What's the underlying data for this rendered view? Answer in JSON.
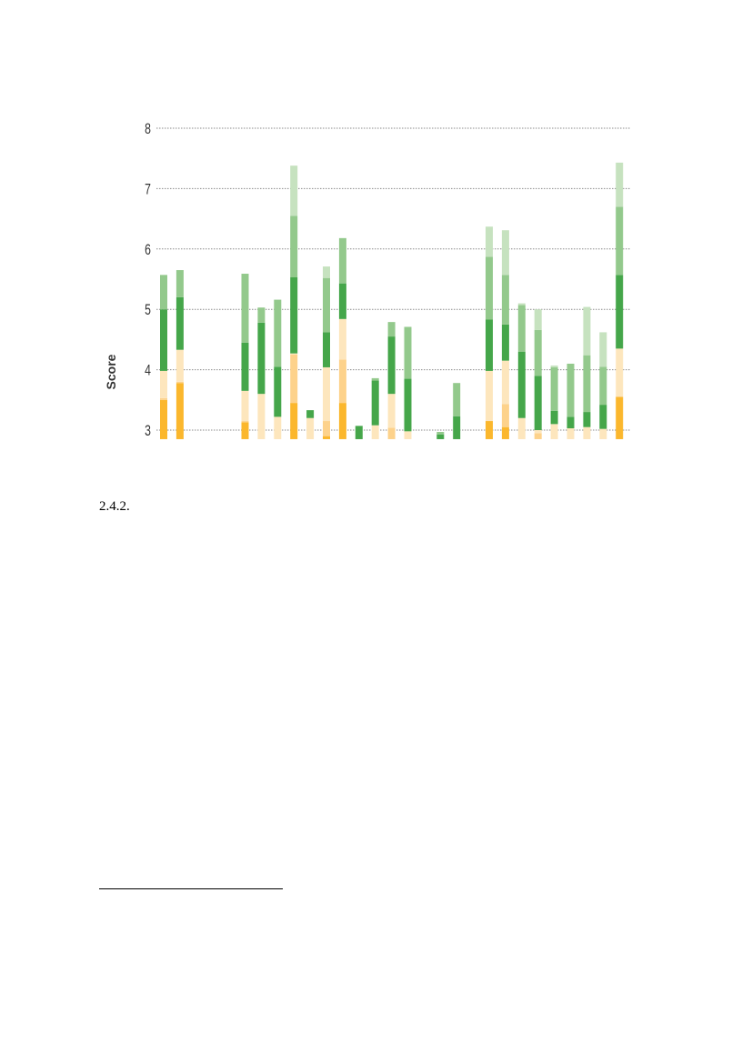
{
  "page": {
    "section_number": "2.4.2."
  },
  "chart_data": {
    "type": "bar",
    "stacked": true,
    "ylabel": "Score",
    "xlabel": "",
    "ylim": [
      2.85,
      8
    ],
    "yticks": [
      3,
      4,
      5,
      6,
      7,
      8
    ],
    "grid": true,
    "grid_style": "dotted",
    "segment_colors": [
      "#fbb72d",
      "#fdd28b",
      "#fde6bd",
      "#45a64a",
      "#93c98c",
      "#c6e2bf"
    ],
    "bars": [
      {
        "v": [
          3.5,
          3.53,
          3.98,
          5.0,
          5.57
        ]
      },
      {
        "v": [
          3.78,
          3.8,
          4.33,
          5.2,
          5.65
        ]
      },
      null,
      null,
      null,
      {
        "v": [
          3.13,
          3.15,
          3.65,
          4.45,
          5.59
        ]
      },
      {
        "v": [
          2.85,
          2.85,
          3.6,
          4.78,
          5.03
        ]
      },
      {
        "v": [
          2.85,
          2.85,
          3.22,
          4.05,
          5.16
        ]
      },
      {
        "v": [
          3.45,
          4.25,
          4.27,
          5.53,
          6.55,
          7.38
        ]
      },
      {
        "v": [
          2.85,
          2.85,
          3.2,
          3.33
        ]
      },
      {
        "v": [
          2.9,
          3.15,
          4.04,
          4.62,
          5.52,
          5.71
        ]
      },
      {
        "v": [
          3.45,
          4.17,
          4.84,
          5.43,
          6.18
        ]
      },
      {
        "v": [
          2.85,
          2.85,
          2.85,
          3.07
        ]
      },
      {
        "v": [
          2.85,
          2.85,
          3.08,
          3.82,
          3.86
        ]
      },
      {
        "v": [
          2.85,
          3.04,
          3.6,
          4.55,
          4.79
        ]
      },
      {
        "v": [
          2.85,
          2.85,
          2.98,
          3.85,
          4.71
        ]
      },
      null,
      {
        "v": [
          2.85,
          2.85,
          2.85,
          2.93,
          2.97
        ]
      },
      {
        "v": [
          2.85,
          2.85,
          2.85,
          3.23,
          3.78
        ]
      },
      null,
      {
        "v": [
          3.15,
          3.15,
          3.98,
          4.83,
          5.87,
          6.37
        ]
      },
      {
        "v": [
          3.05,
          3.43,
          4.15,
          4.75,
          5.57,
          6.31
        ]
      },
      {
        "v": [
          2.85,
          2.85,
          3.2,
          4.3,
          5.07,
          5.1
        ]
      },
      {
        "v": [
          2.85,
          2.95,
          3.0,
          3.9,
          4.66,
          5.0
        ]
      },
      {
        "v": [
          2.85,
          2.85,
          3.1,
          3.32,
          4.04,
          4.07
        ]
      },
      {
        "v": [
          2.85,
          2.85,
          3.03,
          3.22,
          4.1
        ]
      },
      {
        "v": [
          2.85,
          2.85,
          3.05,
          3.3,
          4.24,
          5.04
        ]
      },
      {
        "v": [
          2.85,
          2.85,
          3.02,
          3.42,
          4.05,
          4.62
        ]
      },
      {
        "v": [
          3.55,
          3.55,
          4.35,
          5.57,
          6.7,
          7.43
        ]
      }
    ]
  }
}
